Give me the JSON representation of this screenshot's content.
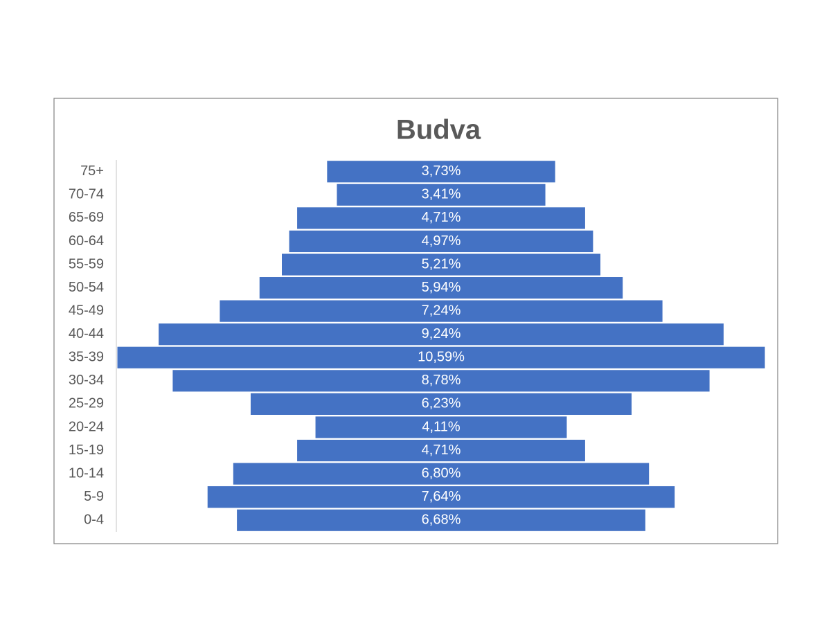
{
  "chart_data": {
    "type": "funnel",
    "title": "Budva",
    "categories": [
      "75+",
      "70-74",
      "65-69",
      "60-64",
      "55-59",
      "50-54",
      "45-49",
      "40-44",
      "35-39",
      "30-34",
      "25-29",
      "20-24",
      "15-19",
      "10-14",
      "5-9",
      "0-4"
    ],
    "values": [
      3.73,
      3.41,
      4.71,
      4.97,
      5.21,
      5.94,
      7.24,
      9.24,
      10.59,
      8.78,
      6.23,
      4.11,
      4.71,
      6.8,
      7.64,
      6.68
    ],
    "value_labels": [
      "3,73%",
      "3,41%",
      "4,71%",
      "4,97%",
      "5,21%",
      "5,94%",
      "7,24%",
      "9,24%",
      "10,59%",
      "8,78%",
      "6,23%",
      "4,11%",
      "4,71%",
      "6,80%",
      "7,64%",
      "6,68%"
    ],
    "color": "#4472c4"
  }
}
